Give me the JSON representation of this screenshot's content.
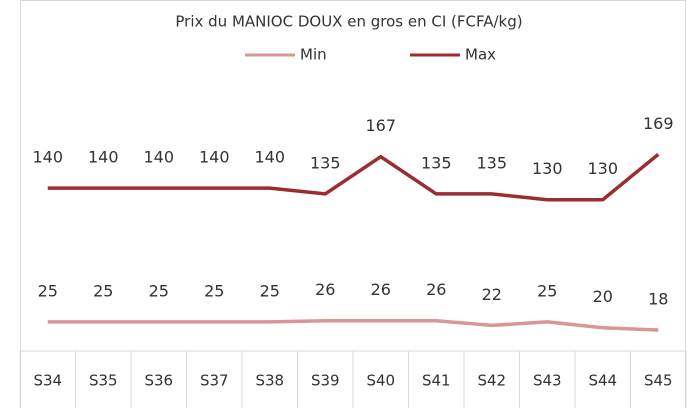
{
  "chart_data": {
    "type": "line",
    "title": "Prix du MANIOC DOUX  en gros en CI (FCFA/kg)",
    "categories": [
      "S34",
      "S35",
      "S36",
      "S37",
      "S38",
      "S39",
      "S40",
      "S41",
      "S42",
      "S43",
      "S44",
      "S45"
    ],
    "series": [
      {
        "name": "Min",
        "color": "#d99694",
        "values": [
          25,
          25,
          25,
          25,
          25,
          26,
          26,
          26,
          22,
          25,
          20,
          18
        ]
      },
      {
        "name": "Max",
        "color": "#9b2d30",
        "values": [
          140,
          140,
          140,
          140,
          140,
          135,
          167,
          135,
          135,
          130,
          130,
          169
        ]
      }
    ],
    "ylim": [
      0,
      220
    ]
  }
}
